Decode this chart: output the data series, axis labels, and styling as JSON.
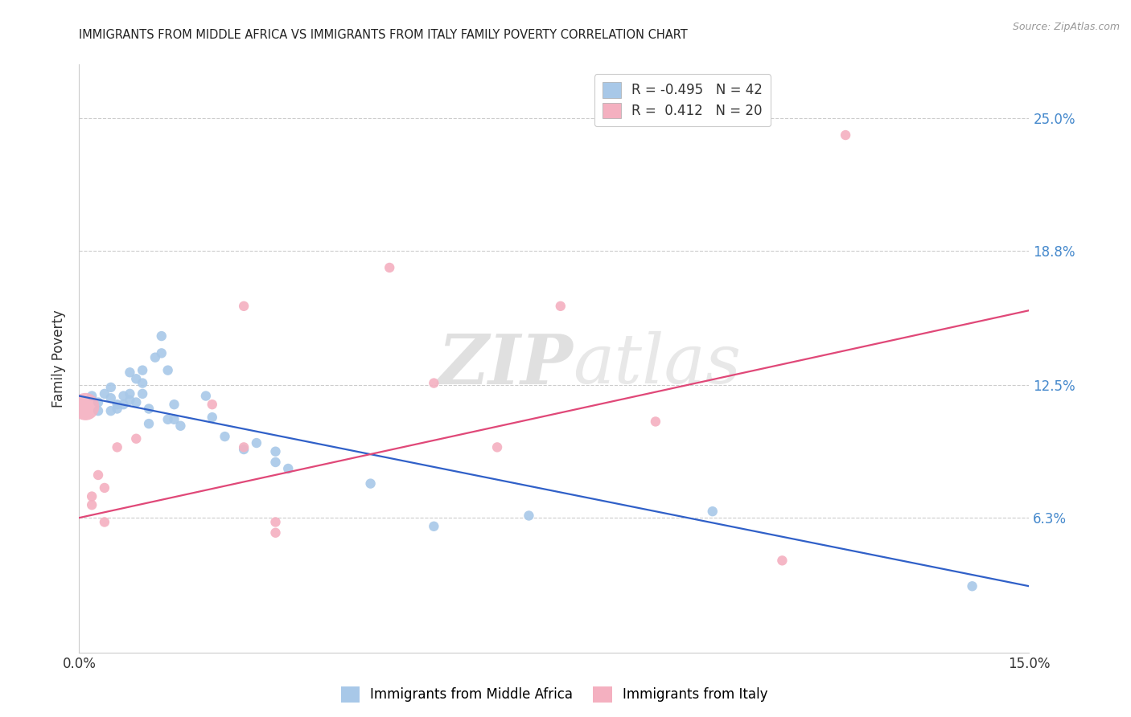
{
  "title": "IMMIGRANTS FROM MIDDLE AFRICA VS IMMIGRANTS FROM ITALY FAMILY POVERTY CORRELATION CHART",
  "source": "Source: ZipAtlas.com",
  "ylabel_label": "Family Poverty",
  "ylabel_ticks": [
    "6.3%",
    "12.5%",
    "18.8%",
    "25.0%"
  ],
  "ylabel_values": [
    0.063,
    0.125,
    0.188,
    0.25
  ],
  "xtick_labels": [
    "0.0%",
    "15.0%"
  ],
  "xtick_vals": [
    0.0,
    0.15
  ],
  "xmin": 0.0,
  "xmax": 0.15,
  "ymin": 0.0,
  "ymax": 0.275,
  "legend_blue_r": "R = -0.495",
  "legend_blue_n": "N = 42",
  "legend_pink_r": "R =  0.412",
  "legend_pink_n": "N = 20",
  "legend_label_blue": "Immigrants from Middle Africa",
  "legend_label_pink": "Immigrants from Italy",
  "blue_color": "#A8C8E8",
  "pink_color": "#F4B0C0",
  "blue_line_color": "#3060C8",
  "pink_line_color": "#E04878",
  "blue_scatter": [
    [
      0.002,
      0.12
    ],
    [
      0.003,
      0.117
    ],
    [
      0.003,
      0.113
    ],
    [
      0.004,
      0.121
    ],
    [
      0.005,
      0.119
    ],
    [
      0.005,
      0.113
    ],
    [
      0.005,
      0.124
    ],
    [
      0.006,
      0.116
    ],
    [
      0.006,
      0.114
    ],
    [
      0.007,
      0.12
    ],
    [
      0.007,
      0.116
    ],
    [
      0.008,
      0.121
    ],
    [
      0.008,
      0.131
    ],
    [
      0.008,
      0.118
    ],
    [
      0.009,
      0.128
    ],
    [
      0.009,
      0.117
    ],
    [
      0.01,
      0.121
    ],
    [
      0.01,
      0.126
    ],
    [
      0.01,
      0.132
    ],
    [
      0.011,
      0.114
    ],
    [
      0.011,
      0.107
    ],
    [
      0.012,
      0.138
    ],
    [
      0.013,
      0.148
    ],
    [
      0.013,
      0.14
    ],
    [
      0.014,
      0.132
    ],
    [
      0.014,
      0.109
    ],
    [
      0.015,
      0.116
    ],
    [
      0.015,
      0.109
    ],
    [
      0.016,
      0.106
    ],
    [
      0.02,
      0.12
    ],
    [
      0.021,
      0.11
    ],
    [
      0.023,
      0.101
    ],
    [
      0.026,
      0.095
    ],
    [
      0.028,
      0.098
    ],
    [
      0.031,
      0.094
    ],
    [
      0.031,
      0.089
    ],
    [
      0.033,
      0.086
    ],
    [
      0.046,
      0.079
    ],
    [
      0.056,
      0.059
    ],
    [
      0.071,
      0.064
    ],
    [
      0.1,
      0.066
    ],
    [
      0.141,
      0.031
    ]
  ],
  "blue_sizes": [
    80,
    80,
    80,
    80,
    80,
    80,
    80,
    80,
    80,
    80,
    80,
    80,
    80,
    80,
    80,
    80,
    80,
    80,
    80,
    80,
    80,
    80,
    80,
    80,
    80,
    80,
    80,
    80,
    80,
    80,
    80,
    80,
    80,
    80,
    80,
    80,
    80,
    80,
    80,
    80,
    80,
    80
  ],
  "pink_scatter": [
    [
      0.001,
      0.115
    ],
    [
      0.002,
      0.073
    ],
    [
      0.002,
      0.069
    ],
    [
      0.003,
      0.083
    ],
    [
      0.004,
      0.077
    ],
    [
      0.004,
      0.061
    ],
    [
      0.006,
      0.096
    ],
    [
      0.009,
      0.1
    ],
    [
      0.021,
      0.116
    ],
    [
      0.026,
      0.162
    ],
    [
      0.026,
      0.096
    ],
    [
      0.031,
      0.061
    ],
    [
      0.031,
      0.056
    ],
    [
      0.049,
      0.18
    ],
    [
      0.056,
      0.126
    ],
    [
      0.066,
      0.096
    ],
    [
      0.076,
      0.162
    ],
    [
      0.091,
      0.108
    ],
    [
      0.111,
      0.043
    ],
    [
      0.121,
      0.242
    ]
  ],
  "pink_sizes": [
    600,
    80,
    80,
    80,
    80,
    80,
    80,
    80,
    80,
    80,
    80,
    80,
    80,
    80,
    80,
    80,
    80,
    80,
    80,
    80
  ],
  "blue_line_x": [
    0.0,
    0.15
  ],
  "blue_line_y": [
    0.12,
    0.031
  ],
  "pink_line_x": [
    0.0,
    0.15
  ],
  "pink_line_y": [
    0.063,
    0.16
  ],
  "background_color": "#FFFFFF",
  "watermark_zip": "ZIP",
  "watermark_atlas": "atlas",
  "grid_color": "#CCCCCC",
  "ytick_color": "#4488CC"
}
